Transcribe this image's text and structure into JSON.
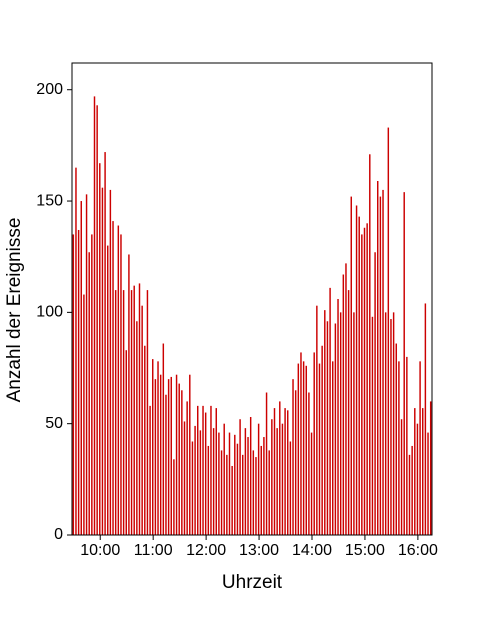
{
  "chart_data": {
    "type": "histogram",
    "xlabel": "Uhrzeit",
    "ylabel": "Anzahl der Ereignisse",
    "color": "#cc0000",
    "bins": [
      568,
      571,
      574,
      577,
      580,
      583,
      586,
      589,
      592,
      595,
      598,
      601,
      604,
      607,
      610,
      613,
      616,
      619,
      622,
      625,
      628,
      631,
      634,
      637,
      640,
      643,
      646,
      649,
      652,
      655,
      658,
      661,
      664,
      667,
      670,
      673,
      676,
      679,
      682,
      685,
      688,
      691,
      694,
      697,
      700,
      703,
      706,
      709,
      712,
      715,
      718,
      721,
      724,
      727,
      730,
      733,
      736,
      739,
      742,
      745,
      748,
      751,
      754,
      757,
      760,
      763,
      766,
      769,
      772,
      775,
      778,
      781,
      784,
      787,
      790,
      793,
      796,
      799,
      802,
      805,
      808,
      811,
      814,
      817,
      820,
      823,
      826,
      829,
      832,
      835,
      838,
      841,
      844,
      847,
      850,
      853,
      856,
      859,
      862,
      865,
      868,
      871,
      874,
      877,
      880,
      883,
      886,
      889,
      892,
      895,
      898,
      901,
      904,
      907,
      910,
      913,
      916,
      919,
      922,
      925,
      928,
      931,
      934,
      937,
      940,
      943,
      946,
      949,
      952,
      955,
      958,
      961,
      964,
      967,
      970,
      973,
      976
    ],
    "values": [
      135,
      165,
      137,
      150,
      108,
      153,
      127,
      135,
      197,
      193,
      167,
      156,
      172,
      130,
      155,
      141,
      110,
      139,
      135,
      110,
      83,
      126,
      110,
      112,
      96,
      113,
      103,
      85,
      110,
      58,
      79,
      70,
      78,
      72,
      86,
      63,
      70,
      71,
      34,
      72,
      68,
      65,
      51,
      60,
      72,
      42,
      49,
      58,
      47,
      58,
      55,
      40,
      58,
      48,
      57,
      46,
      38,
      50,
      36,
      46,
      31,
      45,
      41,
      52,
      36,
      48,
      44,
      53,
      38,
      35,
      50,
      40,
      44,
      64,
      38,
      52,
      57,
      48,
      60,
      50,
      57,
      56,
      42,
      70,
      65,
      77,
      82,
      78,
      76,
      64,
      46,
      82,
      103,
      77,
      85,
      101,
      96,
      111,
      78,
      95,
      106,
      100,
      117,
      122,
      110,
      152,
      100,
      148,
      143,
      135,
      138,
      140,
      171,
      98,
      127,
      159,
      152,
      155,
      100,
      183,
      97,
      100,
      86,
      78,
      52,
      154,
      80,
      36,
      40,
      57,
      50,
      78,
      57,
      104,
      46,
      60
    ],
    "xlim": [
      568,
      976
    ],
    "xticks": [
      {
        "value": 600,
        "label": "10:00"
      },
      {
        "value": 660,
        "label": "11:00"
      },
      {
        "value": 720,
        "label": "12:00"
      },
      {
        "value": 780,
        "label": "13:00"
      },
      {
        "value": 840,
        "label": "14:00"
      },
      {
        "value": 900,
        "label": "15:00"
      },
      {
        "value": 960,
        "label": "16:00"
      }
    ],
    "ylim": [
      0,
      212
    ],
    "yticks": [
      0,
      50,
      100,
      150,
      200
    ]
  }
}
